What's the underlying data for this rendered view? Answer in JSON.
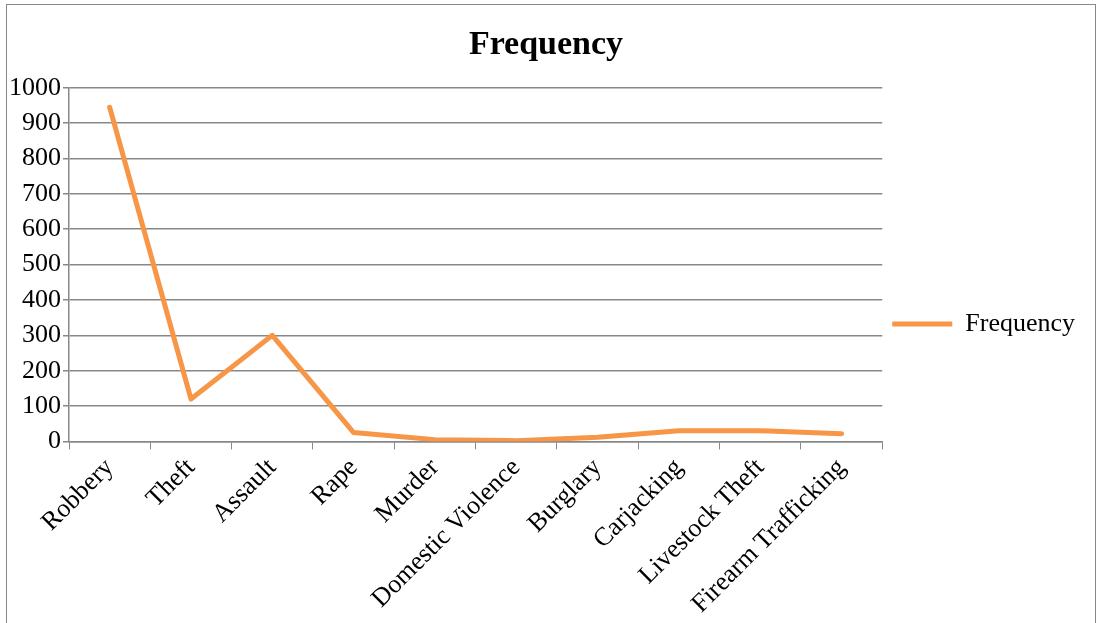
{
  "chart_data": {
    "type": "line",
    "title": "Frequency",
    "categories": [
      "Robbery",
      "Theft",
      "Assault",
      "Rape",
      "Murder",
      "Domestic Violence",
      "Burglary",
      "Carjacking",
      "Livestock Theft",
      "Firearm Trafficking"
    ],
    "series": [
      {
        "name": "Frequency",
        "color": "#f79646",
        "values": [
          945,
          120,
          300,
          25,
          5,
          2,
          12,
          30,
          30,
          22
        ]
      }
    ],
    "ylim": [
      0,
      1000
    ],
    "yticks": [
      0,
      100,
      200,
      300,
      400,
      500,
      600,
      700,
      800,
      900,
      1000
    ],
    "grid": "y",
    "legend": "right",
    "marker": "none",
    "line_style": "solid"
  }
}
